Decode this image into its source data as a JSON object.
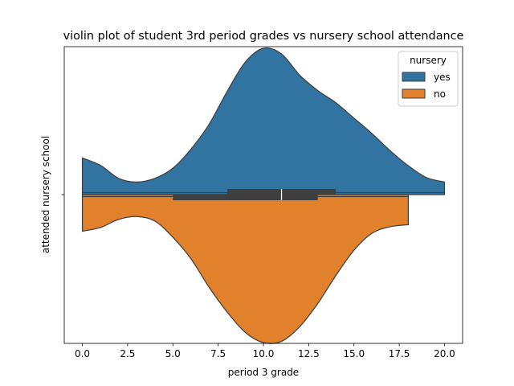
{
  "chart_data": {
    "type": "violin",
    "orientation": "horizontal",
    "split": true,
    "title": "violin plot of student 3rd period grades vs nursery school attendance",
    "xlabel": "period 3 grade",
    "ylabel": "attended nursery school",
    "xlim": [
      -1,
      21
    ],
    "xticks": [
      0.0,
      2.5,
      5.0,
      7.5,
      10.0,
      12.5,
      15.0,
      17.5,
      20.0
    ],
    "xtick_labels": [
      "0.0",
      "2.5",
      "5.0",
      "7.5",
      "10.0",
      "12.5",
      "15.0",
      "17.5",
      "20.0"
    ],
    "grid": false,
    "legend": {
      "title": "nursery",
      "placement": "top-right"
    },
    "series": [
      {
        "name": "yes",
        "color": "#3274a1",
        "side": "upper",
        "range": [
          0,
          20
        ],
        "quartiles": [
          8,
          11,
          14
        ],
        "density": [
          [
            0,
            0.09
          ],
          [
            1,
            0.072
          ],
          [
            2,
            0.04
          ],
          [
            3,
            0.031
          ],
          [
            4,
            0.04
          ],
          [
            5,
            0.065
          ],
          [
            6,
            0.112
          ],
          [
            7,
            0.173
          ],
          [
            8,
            0.254
          ],
          [
            9,
            0.326
          ],
          [
            10,
            0.36
          ],
          [
            11,
            0.346
          ],
          [
            12,
            0.294
          ],
          [
            13,
            0.256
          ],
          [
            14,
            0.226
          ],
          [
            15,
            0.188
          ],
          [
            16,
            0.15
          ],
          [
            17,
            0.108
          ],
          [
            18,
            0.071
          ],
          [
            19,
            0.042
          ],
          [
            20,
            0.031
          ]
        ]
      },
      {
        "name": "no",
        "color": "#e1812c",
        "side": "lower",
        "range": [
          0,
          18
        ],
        "quartiles": [
          5,
          11,
          13
        ],
        "density": [
          [
            0,
            0.09
          ],
          [
            1,
            0.081
          ],
          [
            2,
            0.061
          ],
          [
            3,
            0.054
          ],
          [
            4,
            0.065
          ],
          [
            5,
            0.105
          ],
          [
            6,
            0.158
          ],
          [
            7,
            0.228
          ],
          [
            8,
            0.289
          ],
          [
            9,
            0.339
          ],
          [
            10,
            0.364
          ],
          [
            11,
            0.361
          ],
          [
            12,
            0.325
          ],
          [
            13,
            0.268
          ],
          [
            14,
            0.199
          ],
          [
            15,
            0.137
          ],
          [
            16,
            0.095
          ],
          [
            17,
            0.079
          ],
          [
            18,
            0.074
          ]
        ]
      }
    ]
  }
}
